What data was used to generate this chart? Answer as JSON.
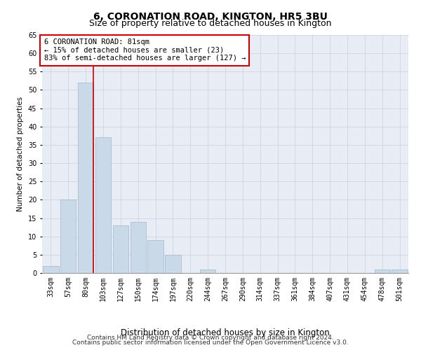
{
  "title": "6, CORONATION ROAD, KINGTON, HR5 3BU",
  "subtitle": "Size of property relative to detached houses in Kington",
  "xlabel": "Distribution of detached houses by size in Kington",
  "ylabel": "Number of detached properties",
  "categories": [
    "33sqm",
    "57sqm",
    "80sqm",
    "103sqm",
    "127sqm",
    "150sqm",
    "174sqm",
    "197sqm",
    "220sqm",
    "244sqm",
    "267sqm",
    "290sqm",
    "314sqm",
    "337sqm",
    "361sqm",
    "384sqm",
    "407sqm",
    "431sqm",
    "454sqm",
    "478sqm",
    "501sqm"
  ],
  "values": [
    2,
    20,
    52,
    37,
    13,
    14,
    9,
    5,
    0,
    1,
    0,
    0,
    0,
    0,
    0,
    0,
    0,
    0,
    0,
    1,
    1
  ],
  "bar_color": "#c9d9e8",
  "bar_edge_color": "#a0b8cc",
  "vline_index": 2,
  "vline_color": "#cc0000",
  "ylim": [
    0,
    65
  ],
  "yticks": [
    0,
    5,
    10,
    15,
    20,
    25,
    30,
    35,
    40,
    45,
    50,
    55,
    60,
    65
  ],
  "annotation_box_text": "6 CORONATION ROAD: 81sqm\n← 15% of detached houses are smaller (23)\n83% of semi-detached houses are larger (127) →",
  "annotation_box_color": "#cc0000",
  "footnote1": "Contains HM Land Registry data © Crown copyright and database right 2024.",
  "footnote2": "Contains public sector information licensed under the Open Government Licence v3.0.",
  "background_color": "#ffffff",
  "plot_bg_color": "#e8edf5",
  "grid_color": "#c8d0e0",
  "title_fontsize": 10,
  "ylabel_fontsize": 7.5,
  "xlabel_fontsize": 8.5,
  "tick_fontsize": 7,
  "annot_fontsize": 7.5,
  "footnote_fontsize": 6.5
}
